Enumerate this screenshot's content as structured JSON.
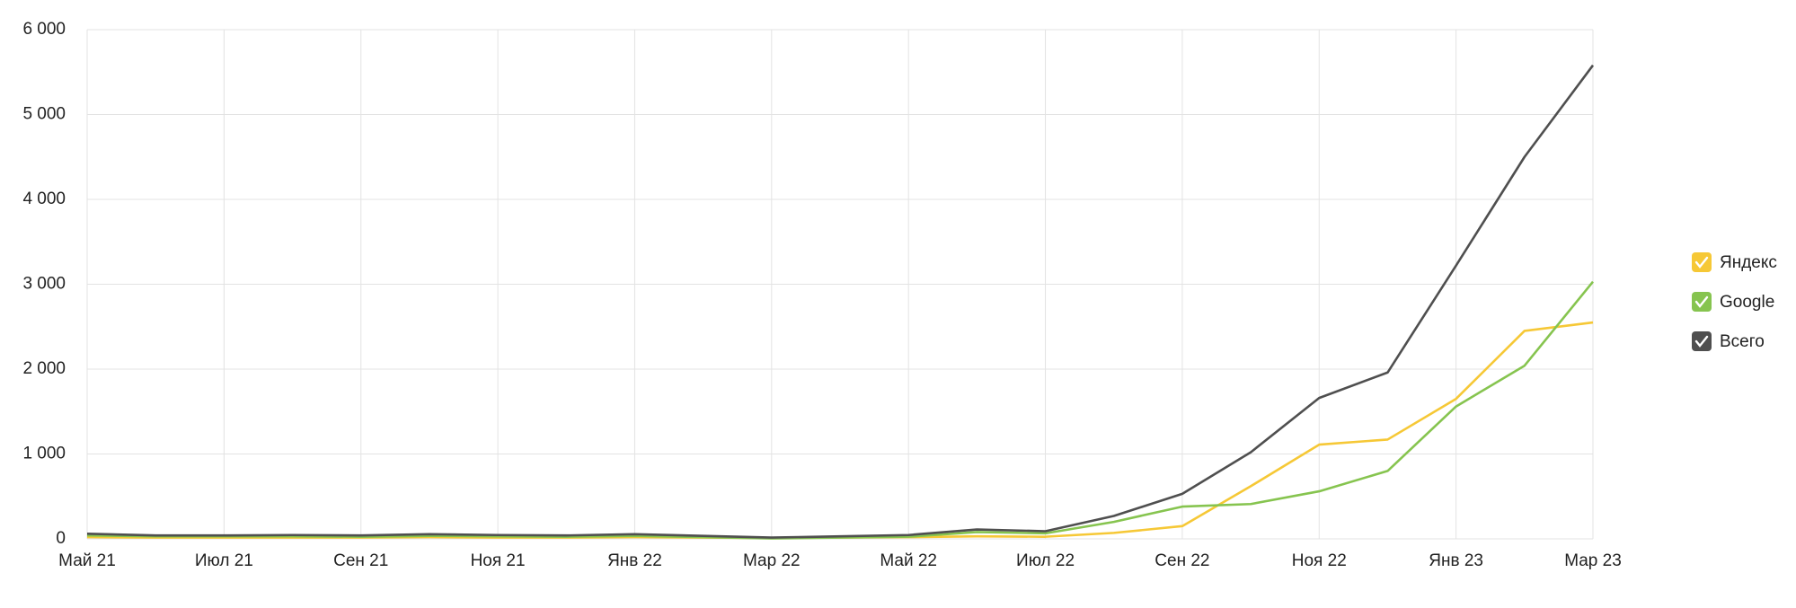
{
  "chart_data": {
    "type": "line",
    "categories": [
      "Май 21",
      null,
      "Июл 21",
      null,
      "Сен 21",
      null,
      "Ноя 21",
      null,
      "Янв 22",
      null,
      "Мар 22",
      null,
      "Май 22",
      null,
      "Июл 22",
      null,
      "Сен 22",
      null,
      "Ноя 22",
      null,
      "Янв 23",
      null,
      "Мар 23"
    ],
    "series": [
      {
        "name": "Яндекс",
        "color": "#f6c836",
        "values": [
          20,
          15,
          15,
          15,
          15,
          20,
          15,
          15,
          20,
          15,
          10,
          15,
          20,
          30,
          25,
          70,
          150,
          620,
          1110,
          1170,
          1650,
          2450,
          2550
        ]
      },
      {
        "name": "Google",
        "color": "#86c44f",
        "values": [
          40,
          30,
          30,
          30,
          25,
          35,
          30,
          25,
          35,
          20,
          5,
          15,
          25,
          80,
          65,
          200,
          380,
          410,
          560,
          800,
          1560,
          2040,
          3030
        ]
      },
      {
        "name": "Всего",
        "color": "#4f4f4f",
        "values": [
          60,
          40,
          40,
          45,
          40,
          55,
          45,
          40,
          55,
          35,
          15,
          30,
          45,
          110,
          90,
          270,
          530,
          1020,
          1660,
          1960,
          3220,
          4500,
          5580
        ]
      }
    ],
    "ylim": [
      0,
      6000
    ],
    "yticks": [
      0,
      {
        "value": 1000,
        "label": "1 000"
      },
      {
        "value": 2000,
        "label": "2 000"
      },
      {
        "value": 3000,
        "label": "3 000"
      },
      {
        "value": 4000,
        "label": "4 000"
      },
      {
        "value": 5000,
        "label": "5 000"
      },
      {
        "value": 6000,
        "label": "6 000"
      }
    ],
    "grid": true,
    "legend": "right"
  }
}
